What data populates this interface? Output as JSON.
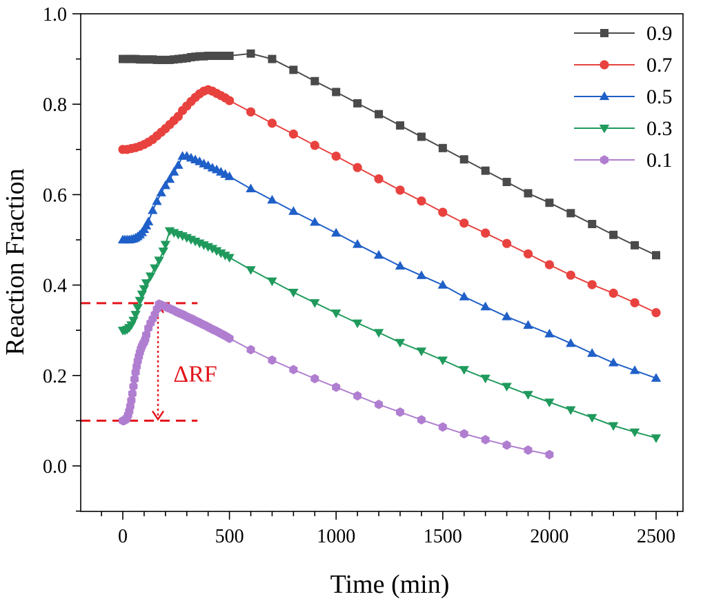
{
  "chart_data": {
    "type": "line",
    "title": "",
    "xlabel": "Time (min)",
    "ylabel": "Reaction Fraction",
    "xlim": [
      -200,
      2650
    ],
    "ylim": [
      -0.1,
      1.0
    ],
    "xticks": [
      0,
      500,
      1000,
      1500,
      2000,
      2500
    ],
    "xtick_labels": [
      "0",
      "500",
      "1000",
      "1500",
      "2000",
      "2500"
    ],
    "yticks": [
      0.0,
      0.2,
      0.4,
      0.6,
      0.8,
      1.0
    ],
    "ytick_labels": [
      "0.0",
      "0.2",
      "0.4",
      "0.6",
      "0.8",
      "1.0"
    ],
    "grid": false,
    "legend_position": "top-right",
    "series": [
      {
        "name": "0.9",
        "color": "#4a4a4a",
        "marker": "square",
        "x": [
          0,
          20,
          40,
          60,
          80,
          100,
          120,
          140,
          160,
          180,
          200,
          220,
          240,
          260,
          280,
          300,
          320,
          340,
          360,
          380,
          400,
          420,
          440,
          460,
          480,
          500,
          600,
          700,
          800,
          900,
          1000,
          1100,
          1200,
          1300,
          1400,
          1500,
          1600,
          1700,
          1800,
          1900,
          2000,
          2100,
          2200,
          2300,
          2400,
          2500
        ],
        "y": [
          0.9,
          0.9,
          0.9,
          0.9,
          0.899,
          0.899,
          0.899,
          0.899,
          0.898,
          0.898,
          0.898,
          0.898,
          0.899,
          0.9,
          0.901,
          0.902,
          0.904,
          0.905,
          0.906,
          0.906,
          0.907,
          0.907,
          0.907,
          0.907,
          0.907,
          0.907,
          0.912,
          0.9,
          0.876,
          0.851,
          0.827,
          0.802,
          0.778,
          0.753,
          0.728,
          0.703,
          0.678,
          0.653,
          0.628,
          0.603,
          0.582,
          0.559,
          0.535,
          0.511,
          0.488,
          0.466
        ]
      },
      {
        "name": "0.7",
        "color": "#e8423f",
        "marker": "circle",
        "x": [
          0,
          20,
          40,
          60,
          80,
          100,
          120,
          140,
          160,
          180,
          200,
          220,
          240,
          260,
          280,
          300,
          320,
          340,
          360,
          380,
          400,
          420,
          440,
          460,
          480,
          500,
          600,
          700,
          800,
          900,
          1000,
          1100,
          1200,
          1300,
          1400,
          1500,
          1600,
          1700,
          1800,
          1900,
          2000,
          2100,
          2200,
          2300,
          2400,
          2500
        ],
        "y": [
          0.7,
          0.7,
          0.702,
          0.704,
          0.707,
          0.711,
          0.716,
          0.722,
          0.73,
          0.738,
          0.746,
          0.755,
          0.764,
          0.773,
          0.786,
          0.796,
          0.806,
          0.815,
          0.823,
          0.829,
          0.832,
          0.829,
          0.824,
          0.819,
          0.814,
          0.808,
          0.783,
          0.758,
          0.734,
          0.709,
          0.685,
          0.66,
          0.635,
          0.61,
          0.586,
          0.561,
          0.537,
          0.515,
          0.492,
          0.469,
          0.445,
          0.422,
          0.401,
          0.382,
          0.361,
          0.339
        ]
      },
      {
        "name": "0.5",
        "color": "#1f5fc8",
        "marker": "triangle-up",
        "x": [
          0,
          10,
          20,
          30,
          40,
          50,
          60,
          70,
          80,
          90,
          100,
          110,
          120,
          140,
          160,
          180,
          200,
          220,
          240,
          260,
          280,
          300,
          320,
          340,
          360,
          380,
          400,
          420,
          440,
          460,
          480,
          500,
          600,
          700,
          800,
          900,
          1000,
          1100,
          1200,
          1300,
          1400,
          1500,
          1600,
          1700,
          1800,
          1900,
          2000,
          2100,
          2200,
          2300,
          2400,
          2500
        ],
        "y": [
          0.5,
          0.5,
          0.5,
          0.5,
          0.501,
          0.502,
          0.504,
          0.507,
          0.511,
          0.516,
          0.523,
          0.531,
          0.54,
          0.565,
          0.585,
          0.604,
          0.62,
          0.634,
          0.65,
          0.665,
          0.685,
          0.685,
          0.681,
          0.677,
          0.673,
          0.668,
          0.664,
          0.659,
          0.655,
          0.65,
          0.645,
          0.64,
          0.613,
          0.588,
          0.563,
          0.539,
          0.515,
          0.49,
          0.466,
          0.442,
          0.421,
          0.4,
          0.374,
          0.352,
          0.33,
          0.311,
          0.292,
          0.271,
          0.249,
          0.228,
          0.211,
          0.194
        ]
      },
      {
        "name": "0.3",
        "color": "#1f9a5c",
        "marker": "triangle-down",
        "x": [
          0,
          10,
          20,
          30,
          40,
          50,
          60,
          70,
          80,
          90,
          100,
          110,
          130,
          150,
          170,
          190,
          200,
          220,
          240,
          260,
          280,
          300,
          320,
          340,
          360,
          380,
          400,
          420,
          440,
          460,
          480,
          500,
          600,
          700,
          800,
          900,
          1000,
          1100,
          1200,
          1300,
          1400,
          1500,
          1600,
          1700,
          1800,
          1900,
          2000,
          2100,
          2200,
          2300,
          2400,
          2500
        ],
        "y": [
          0.3,
          0.3,
          0.302,
          0.306,
          0.312,
          0.322,
          0.335,
          0.35,
          0.366,
          0.38,
          0.392,
          0.405,
          0.42,
          0.438,
          0.455,
          0.475,
          0.49,
          0.52,
          0.516,
          0.512,
          0.509,
          0.505,
          0.501,
          0.497,
          0.493,
          0.489,
          0.485,
          0.481,
          0.476,
          0.471,
          0.466,
          0.461,
          0.434,
          0.409,
          0.384,
          0.361,
          0.338,
          0.316,
          0.295,
          0.273,
          0.254,
          0.234,
          0.213,
          0.194,
          0.176,
          0.158,
          0.141,
          0.124,
          0.107,
          0.089,
          0.075,
          0.062
        ]
      },
      {
        "name": "0.1",
        "color": "#b07ed0",
        "marker": "hexagon",
        "x": [
          0,
          5,
          10,
          15,
          20,
          25,
          30,
          35,
          40,
          45,
          50,
          55,
          60,
          65,
          70,
          75,
          80,
          85,
          90,
          95,
          100,
          105,
          110,
          120,
          130,
          140,
          150,
          160,
          170,
          180,
          190,
          200,
          210,
          220,
          230,
          240,
          250,
          260,
          270,
          280,
          290,
          300,
          310,
          320,
          330,
          340,
          350,
          360,
          370,
          380,
          390,
          400,
          410,
          420,
          430,
          440,
          450,
          460,
          470,
          480,
          490,
          500,
          600,
          700,
          800,
          900,
          1000,
          1100,
          1200,
          1300,
          1400,
          1500,
          1600,
          1700,
          1800,
          1900,
          2000
        ],
        "y": [
          0.1,
          0.1,
          0.101,
          0.103,
          0.107,
          0.113,
          0.121,
          0.132,
          0.145,
          0.16,
          0.176,
          0.192,
          0.207,
          0.22,
          0.232,
          0.242,
          0.251,
          0.259,
          0.265,
          0.27,
          0.274,
          0.28,
          0.29,
          0.305,
          0.316,
          0.325,
          0.335,
          0.347,
          0.358,
          0.356,
          0.354,
          0.352,
          0.35,
          0.348,
          0.346,
          0.344,
          0.341,
          0.339,
          0.337,
          0.335,
          0.333,
          0.33,
          0.328,
          0.326,
          0.324,
          0.321,
          0.319,
          0.317,
          0.314,
          0.312,
          0.31,
          0.307,
          0.305,
          0.302,
          0.3,
          0.298,
          0.295,
          0.293,
          0.29,
          0.288,
          0.285,
          0.282,
          0.257,
          0.234,
          0.213,
          0.193,
          0.174,
          0.155,
          0.136,
          0.119,
          0.102,
          0.086,
          0.071,
          0.058,
          0.046,
          0.035,
          0.025
        ]
      }
    ],
    "annotations": [
      {
        "type": "hline",
        "y": 0.36,
        "x_from": -200,
        "x_to": 350,
        "color": "#e3141b",
        "style": "dashed"
      },
      {
        "type": "hline",
        "y": 0.1,
        "x_from": -200,
        "x_to": 350,
        "color": "#e3141b",
        "style": "dashed"
      },
      {
        "type": "double-arrow",
        "x": 165,
        "y_from": 0.1,
        "y_to": 0.36,
        "color": "#e3141b",
        "style": "dotted"
      },
      {
        "type": "text",
        "text": "ΔRF",
        "x": 340,
        "y": 0.205,
        "color": "#e3141b"
      }
    ]
  }
}
